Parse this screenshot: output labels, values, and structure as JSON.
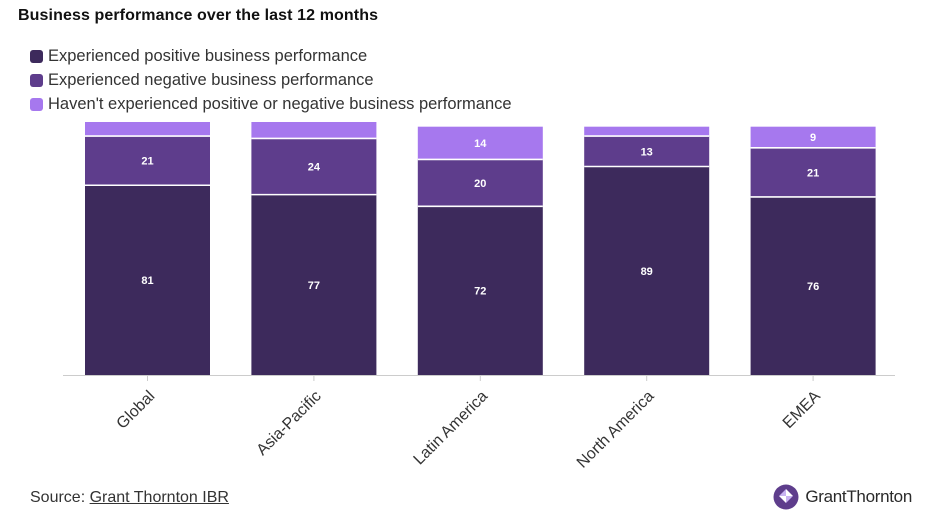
{
  "header": {
    "title": "Business performance over the last 12 months"
  },
  "legend": [
    {
      "label": "Experienced positive business performance",
      "color": "#3d2a5c"
    },
    {
      "label": "Experienced negative business performance",
      "color": "#5e3d8c"
    },
    {
      "label": "Haven't experienced positive or negative business performance",
      "color": "#a678ee"
    }
  ],
  "chart_data": {
    "type": "bar",
    "stacked": true,
    "categories": [
      "Global",
      "Asia-Pacific",
      "Latin America",
      "North America",
      "EMEA"
    ],
    "series": [
      {
        "name": "Experienced positive business performance",
        "values": [
          81,
          77,
          72,
          89,
          76
        ],
        "color": "#3d2a5c"
      },
      {
        "name": "Experienced negative business performance",
        "values": [
          21,
          24,
          20,
          13,
          21
        ],
        "color": "#5e3d8c"
      },
      {
        "name": "Haven't experienced positive or negative business performance",
        "values": [
          6,
          7,
          14,
          4,
          9
        ],
        "color": "#a678ee"
      }
    ],
    "data_labels": [
      [
        "81",
        "77",
        "72",
        "89",
        "76"
      ],
      [
        "21",
        "24",
        "20",
        "13",
        "21"
      ],
      [
        "",
        "",
        "14",
        "",
        "9"
      ]
    ],
    "ylim": [
      0,
      108
    ],
    "xlabel": "",
    "ylabel": "",
    "grid": false,
    "legend_position": "top-left"
  },
  "footer": {
    "source_prefix": "Source: ",
    "source_link": "Grant Thornton IBR"
  },
  "brand": {
    "name": "GrantThornton",
    "logo_icon": "grant-thornton-logo-icon"
  }
}
